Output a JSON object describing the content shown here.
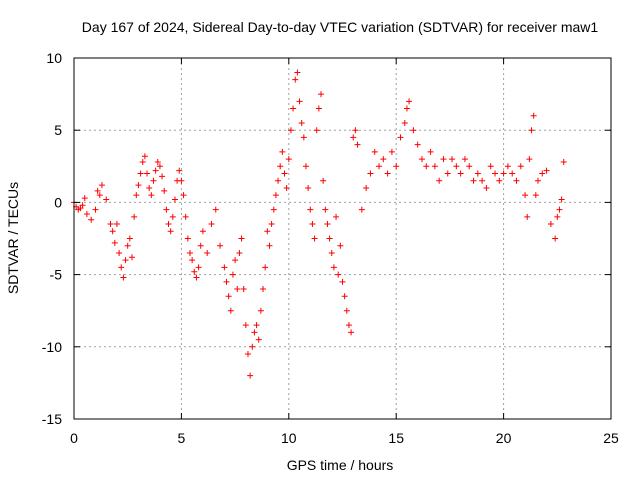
{
  "chart_data": {
    "type": "scatter",
    "title": "Day 167 of 2024, Sidereal Day-to-day VTEC variation (SDTVAR) for receiver maw1",
    "xlabel": "GPS time / hours",
    "ylabel": "SDTVAR / TECUs",
    "xlim": [
      0,
      25
    ],
    "ylim": [
      -15,
      10
    ],
    "xticks": [
      "0",
      "5",
      "10",
      "15",
      "20",
      "25"
    ],
    "xtick_values": [
      0,
      5,
      10,
      15,
      20,
      25
    ],
    "yticks": [
      "-15",
      "-10",
      "-5",
      "0",
      "5",
      "10"
    ],
    "ytick_values": [
      -15,
      -10,
      -5,
      0,
      5,
      10
    ],
    "grid": true,
    "marker": "+",
    "color": "#ff0000",
    "series": [
      {
        "name": "SDTVAR",
        "x": [
          0.0,
          0.1,
          0.2,
          0.3,
          0.4,
          0.5,
          0.6,
          0.8,
          1.0,
          1.1,
          1.2,
          1.3,
          1.5,
          1.7,
          1.8,
          1.9,
          2.0,
          2.1,
          2.2,
          2.3,
          2.4,
          2.5,
          2.6,
          2.7,
          2.8,
          2.9,
          3.0,
          3.1,
          3.2,
          3.3,
          3.4,
          3.5,
          3.6,
          3.7,
          3.8,
          3.9,
          4.0,
          4.1,
          4.2,
          4.3,
          4.4,
          4.5,
          4.6,
          4.7,
          4.8,
          4.9,
          5.0,
          5.1,
          5.2,
          5.3,
          5.4,
          5.5,
          5.6,
          5.7,
          5.8,
          5.9,
          6.0,
          6.2,
          6.4,
          6.6,
          6.8,
          7.0,
          7.1,
          7.2,
          7.3,
          7.4,
          7.5,
          7.6,
          7.7,
          7.8,
          7.9,
          8.0,
          8.1,
          8.2,
          8.3,
          8.4,
          8.5,
          8.6,
          8.7,
          8.8,
          8.9,
          9.0,
          9.1,
          9.2,
          9.3,
          9.4,
          9.5,
          9.6,
          9.7,
          9.8,
          9.9,
          10.0,
          10.1,
          10.2,
          10.3,
          10.4,
          10.5,
          10.6,
          10.7,
          10.8,
          10.9,
          11.0,
          11.1,
          11.2,
          11.3,
          11.4,
          11.5,
          11.6,
          11.7,
          11.8,
          11.9,
          12.0,
          12.1,
          12.2,
          12.3,
          12.4,
          12.5,
          12.6,
          12.7,
          12.8,
          12.9,
          13.0,
          13.1,
          13.2,
          13.4,
          13.6,
          13.8,
          14.0,
          14.2,
          14.4,
          14.6,
          14.8,
          15.0,
          15.2,
          15.4,
          15.5,
          15.6,
          15.8,
          16.0,
          16.2,
          16.4,
          16.6,
          16.8,
          17.0,
          17.2,
          17.4,
          17.6,
          17.8,
          18.0,
          18.2,
          18.4,
          18.6,
          18.8,
          19.0,
          19.2,
          19.4,
          19.6,
          19.8,
          20.0,
          20.2,
          20.4,
          20.6,
          20.8,
          21.0,
          21.1,
          21.2,
          21.3,
          21.4,
          21.5,
          21.6,
          21.8,
          22.0,
          22.2,
          22.4,
          22.5,
          22.6,
          22.7,
          22.8
        ],
        "y": [
          0.0,
          -0.3,
          -0.5,
          -0.4,
          -0.2,
          0.3,
          -0.8,
          -1.2,
          -0.5,
          0.8,
          0.5,
          1.2,
          0.2,
          -1.5,
          -2.0,
          -2.8,
          -1.5,
          -3.5,
          -4.5,
          -5.2,
          -4.0,
          -3.0,
          -2.5,
          -3.8,
          -1.0,
          0.5,
          1.2,
          2.0,
          2.8,
          3.2,
          2.0,
          1.0,
          0.5,
          1.5,
          2.2,
          2.8,
          2.5,
          1.8,
          0.8,
          -0.5,
          -1.5,
          -2.0,
          -1.0,
          0.2,
          1.5,
          2.2,
          1.5,
          0.5,
          -1.0,
          -2.5,
          -3.5,
          -4.0,
          -4.8,
          -5.2,
          -4.5,
          -3.0,
          -2.0,
          -3.5,
          -1.5,
          -0.5,
          -3.0,
          -4.5,
          -5.5,
          -6.5,
          -7.5,
          -5.0,
          -4.0,
          -6.0,
          -3.5,
          -2.5,
          -6.0,
          -8.5,
          -10.5,
          -12.0,
          -10.0,
          -9.0,
          -8.5,
          -9.5,
          -7.5,
          -6.0,
          -4.5,
          -2.0,
          -3.0,
          -1.5,
          -0.5,
          0.5,
          1.5,
          2.5,
          3.5,
          2.0,
          1.0,
          3.0,
          5.0,
          6.5,
          8.5,
          9.0,
          7.0,
          5.5,
          4.5,
          2.5,
          1.0,
          -0.5,
          -1.5,
          -2.5,
          5.0,
          6.5,
          7.5,
          1.5,
          -0.5,
          -1.5,
          -2.5,
          -3.5,
          -4.5,
          -1.0,
          -5.0,
          -3.0,
          -5.5,
          -6.5,
          -7.5,
          -8.5,
          -9.0,
          4.5,
          5.0,
          4.0,
          -0.5,
          1.0,
          2.0,
          3.5,
          2.5,
          3.0,
          2.0,
          3.5,
          2.5,
          4.5,
          5.5,
          6.5,
          7.0,
          5.0,
          4.0,
          3.0,
          2.5,
          3.5,
          2.5,
          1.5,
          3.0,
          2.0,
          3.0,
          2.5,
          2.0,
          3.0,
          2.5,
          1.5,
          2.0,
          1.5,
          1.0,
          2.5,
          2.0,
          1.5,
          2.0,
          2.5,
          2.0,
          1.5,
          2.5,
          0.5,
          -1.0,
          3.0,
          5.0,
          6.0,
          0.5,
          1.5,
          2.0,
          2.2,
          -1.5,
          -2.5,
          -1.0,
          -0.5,
          0.2,
          2.8
        ]
      }
    ]
  }
}
